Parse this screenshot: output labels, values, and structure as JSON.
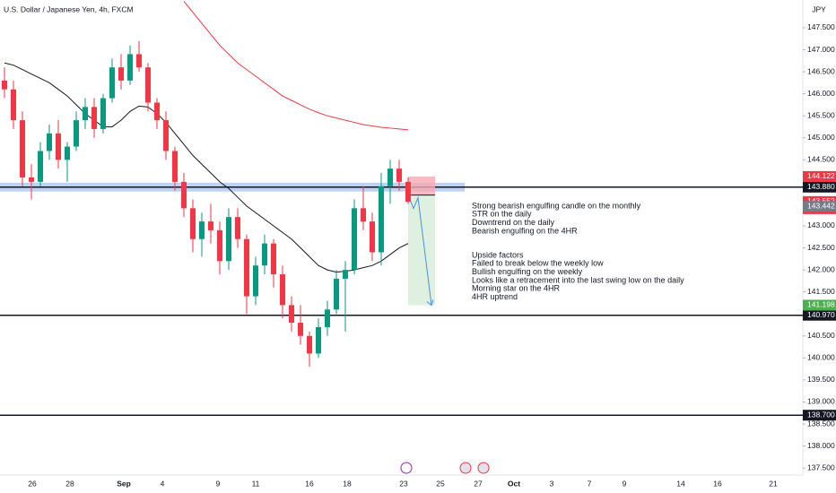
{
  "chart_data": {
    "type": "candlestick",
    "title": "U.S. Dollar / Japanese Yen, 4h, FXCM",
    "currency": "JPY",
    "ylim": [
      137.34,
      148.13
    ],
    "yticks": [
      {
        "value": 137.5,
        "label": "137.500"
      },
      {
        "value": 138,
        "label": "138.000"
      },
      {
        "value": 138.5,
        "label": "138.500"
      },
      {
        "value": 139,
        "label": "139.000"
      },
      {
        "value": 139.5,
        "label": "139.500"
      },
      {
        "value": 140,
        "label": "140.000"
      },
      {
        "value": 140.5,
        "label": "140.500"
      },
      {
        "value": 141,
        "label": "141.000"
      },
      {
        "value": 141.5,
        "label": "141.500"
      },
      {
        "value": 142,
        "label": "142.000"
      },
      {
        "value": 142.5,
        "label": "142.500"
      },
      {
        "value": 143,
        "label": "143.000"
      },
      {
        "value": 143.5,
        "label": "143.500"
      },
      {
        "value": 144,
        "label": "144.000"
      },
      {
        "value": 144.5,
        "label": "144.500"
      },
      {
        "value": 145,
        "label": "145.000"
      },
      {
        "value": 145.5,
        "label": "145.500"
      },
      {
        "value": 146,
        "label": "146.000"
      },
      {
        "value": 146.5,
        "label": "146.500"
      },
      {
        "value": 147,
        "label": "147.000"
      },
      {
        "value": 147.5,
        "label": "147.500"
      }
    ],
    "xtick_labels": [
      "26",
      "28",
      "Sep",
      "4",
      "9",
      "11",
      "16",
      "18",
      "23",
      "25",
      "27",
      "Oct",
      "3",
      "7",
      "9",
      "14",
      "16",
      "21"
    ],
    "up_color": "#089981",
    "down_color": "#f23645",
    "open": [
      146.3,
      146.1,
      145.4,
      144.1,
      144.0,
      144.7,
      145.1,
      144.5,
      144.8,
      145.4,
      145.7,
      145.2,
      145.9,
      146.6,
      146.3,
      146.9,
      146.6,
      145.8,
      145.4,
      144.7,
      144.0,
      143.4,
      142.7,
      143.1,
      142.9,
      142.2,
      143.2,
      142.7,
      141.4,
      142.1,
      142.6,
      141.9,
      141.2,
      140.8,
      140.5,
      140.1,
      140.7,
      141.1,
      141.8,
      142.0,
      143.4,
      143.1,
      142.4,
      143.9,
      144.3,
      144.0
    ],
    "high": [
      146.6,
      146.3,
      145.6,
      144.4,
      144.9,
      145.3,
      145.4,
      144.9,
      145.6,
      145.9,
      145.9,
      146.0,
      146.8,
      146.9,
      147.1,
      147.2,
      146.7,
      145.9,
      145.6,
      144.8,
      144.2,
      143.6,
      143.3,
      143.5,
      143.1,
      143.4,
      143.4,
      142.8,
      142.3,
      142.8,
      142.7,
      142.1,
      141.4,
      141.2,
      140.6,
      140.9,
      141.3,
      142.0,
      142.2,
      143.6,
      143.9,
      143.3,
      144.2,
      144.5,
      144.5,
      144.1
    ],
    "low": [
      145.9,
      145.2,
      143.9,
      143.6,
      143.9,
      144.5,
      144.3,
      144.0,
      144.7,
      145.2,
      145.0,
      145.1,
      145.8,
      146.1,
      146.2,
      146.5,
      145.6,
      145.2,
      144.5,
      143.8,
      143.2,
      142.4,
      142.3,
      142.6,
      141.9,
      142.0,
      142.5,
      141.0,
      141.2,
      141.9,
      141.6,
      140.9,
      140.6,
      140.3,
      139.8,
      140.0,
      140.5,
      141.0,
      140.6,
      141.9,
      142.9,
      142.2,
      142.1,
      143.5,
      143.8,
      143.5
    ],
    "close": [
      146.1,
      145.4,
      144.1,
      144.0,
      144.7,
      145.1,
      144.5,
      144.8,
      145.4,
      145.7,
      145.2,
      145.9,
      146.6,
      146.3,
      146.9,
      146.6,
      145.8,
      145.4,
      144.7,
      144.0,
      143.4,
      142.7,
      143.1,
      142.9,
      142.2,
      143.2,
      142.7,
      141.4,
      142.1,
      142.6,
      141.9,
      141.2,
      140.8,
      140.5,
      140.1,
      140.7,
      141.1,
      141.8,
      142.0,
      143.4,
      143.1,
      142.4,
      143.9,
      144.3,
      144.0,
      143.55
    ],
    "series": [
      {
        "color": "#f23645",
        "values": [
          null,
          null,
          null,
          null,
          null,
          null,
          null,
          null,
          null,
          null,
          null,
          null,
          null,
          null,
          null,
          null,
          null,
          null,
          null,
          null,
          148.1,
          147.85,
          147.6,
          147.35,
          147.1,
          146.9,
          146.7,
          146.55,
          146.4,
          146.25,
          146.1,
          145.95,
          145.85,
          145.75,
          145.65,
          145.57,
          145.5,
          145.45,
          145.4,
          145.35,
          145.3,
          145.27,
          145.24,
          145.22,
          145.2,
          145.18
        ]
      },
      {
        "color": "#131722",
        "values": [
          146.7,
          146.65,
          146.55,
          146.45,
          146.35,
          146.25,
          146.1,
          145.95,
          145.75,
          145.55,
          145.4,
          145.25,
          145.25,
          145.4,
          145.6,
          145.72,
          145.7,
          145.55,
          145.35,
          145.1,
          144.85,
          144.6,
          144.4,
          144.2,
          144.0,
          143.85,
          143.65,
          143.45,
          143.3,
          143.15,
          143.0,
          142.85,
          142.7,
          142.5,
          142.3,
          142.1,
          142.0,
          141.95,
          141.97,
          142.0,
          142.05,
          142.1,
          142.2,
          142.35,
          142.5,
          142.6
        ]
      }
    ],
    "levels": [
      {
        "value": 143.88,
        "label": "143.880"
      },
      {
        "value": 140.97,
        "label": "140.970"
      },
      {
        "value": 138.7,
        "label": "138.700"
      }
    ],
    "zone": [
      143.78,
      143.98
    ],
    "position": {
      "entry": 143.7,
      "stop": 144.122,
      "target": 141.198
    },
    "price_tags": [
      {
        "value": 144.122,
        "label": "144.122",
        "color": "#f23645"
      },
      {
        "value": 143.552,
        "label": "143.552",
        "sublabel": "00:46",
        "color": "#f23645"
      },
      {
        "value": 143.442,
        "label": "143.442",
        "color": "#787b86"
      },
      {
        "value": 141.198,
        "label": "141.198",
        "color": "#4caf50"
      }
    ],
    "notes": [
      [
        "Strong bearish engulfing candle on the monthly",
        "STR on the daily",
        "Downtrend on the daily",
        "Bearish engulfing on the 4HR"
      ],
      [
        "Upside factors",
        "Failed to break below the weekly low",
        "Bullish engulfing on the weekly",
        "Looks like a retracement into the last swing low on the daily",
        "Morning star on the 4HR",
        "4HR uptrend"
      ]
    ]
  }
}
